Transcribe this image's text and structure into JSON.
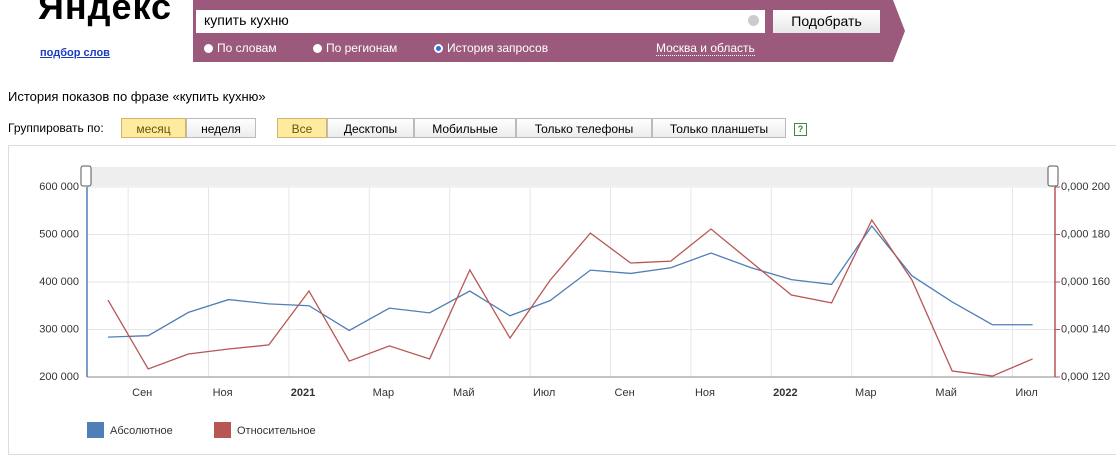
{
  "header": {
    "logo": "Яндекс",
    "logo_sub": "подбор слов",
    "query": "купить кухню",
    "submit": "Подобрать",
    "modes": [
      "По словам",
      "По регионам",
      "История запросов"
    ],
    "region": "Москва и область"
  },
  "history_title": "История показов по фразе «купить кухню»",
  "grouping": {
    "label": "Группировать по:",
    "options": [
      "месяц",
      "неделя"
    ]
  },
  "devices": [
    "Все",
    "Десктопы",
    "Мобильные",
    "Только телефоны",
    "Только планшеты"
  ],
  "help": "?",
  "chart_data": {
    "type": "line",
    "categories": [
      null,
      "Сен",
      null,
      "Ноя",
      null,
      "2021",
      null,
      "Мар",
      null,
      "Май",
      null,
      "Июл",
      null,
      "Сен",
      null,
      "Ноя",
      null,
      "2022",
      null,
      "Мар",
      null,
      "Май",
      null,
      "Июл"
    ],
    "series": [
      {
        "name": "Абсолютное",
        "color": "#4f7fb6",
        "values": [
          284000,
          287000,
          336000,
          363000,
          354000,
          350000,
          298000,
          345000,
          335000,
          381000,
          329000,
          361000,
          425000,
          418000,
          430000,
          461000,
          430000,
          405000,
          395000,
          518000,
          413000,
          358000,
          310000,
          310000
        ]
      },
      {
        "name": "Относительное",
        "color": "#b85654",
        "axis": "y2",
        "values": [
          0.0001524,
          0.0001234,
          0.0001297,
          0.0001318,
          0.0001335,
          0.0001562,
          0.0001267,
          0.0001331,
          0.0001276,
          0.0001651,
          0.0001364,
          0.0001608,
          0.0001806,
          0.000168,
          0.0001688,
          0.0001823,
          0.0001684,
          0.0001545,
          0.0001512,
          0.0001861,
          0.0001608,
          0.0001225,
          0.0001204,
          0.0001276
        ]
      }
    ],
    "ylim": [
      200000,
      600000
    ],
    "yticks": [
      {
        "value": 200000,
        "label": "200 000"
      },
      {
        "value": 300000,
        "label": "300 000"
      },
      {
        "value": 400000,
        "label": "400 000"
      },
      {
        "value": 500000,
        "label": "500 000"
      },
      {
        "value": 600000,
        "label": "600 000"
      }
    ],
    "y2lim": [
      0.00012,
      0.0002
    ],
    "y2ticks": [
      {
        "value": 0.00012,
        "label": "0,000 120"
      },
      {
        "value": 0.00014,
        "label": "0,000 140"
      },
      {
        "value": 0.00016,
        "label": "0,000 160"
      },
      {
        "value": 0.00018,
        "label": "0,000 180"
      },
      {
        "value": 0.0002,
        "label": "0,000 200"
      }
    ],
    "grid": true
  }
}
